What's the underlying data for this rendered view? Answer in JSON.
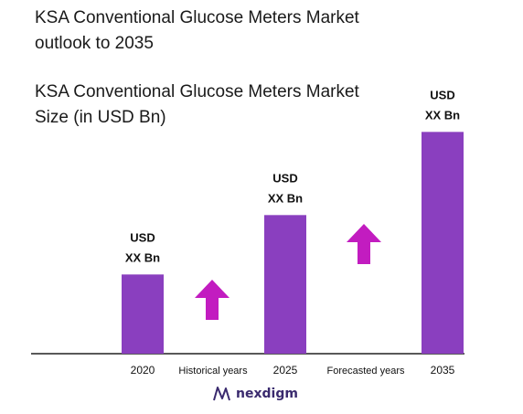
{
  "chart_data": {
    "type": "bar",
    "title": "KSA Conventional Glucose Meters Market\noutlook to 2035",
    "subtitle": "KSA Conventional Glucose Meters Market\nSize (in USD Bn)",
    "categories": [
      "2020",
      "2025",
      "2035"
    ],
    "values": [
      1.0,
      1.75,
      2.8
    ],
    "data_labels": [
      [
        "USD",
        "XX Bn"
      ],
      [
        "USD",
        "XX Bn"
      ],
      [
        "USD",
        "XX Bn"
      ]
    ],
    "period_labels": [
      "Historical years",
      "Forecasted years"
    ],
    "bar_color": "#8a3fbf",
    "arrow_color": "#c21cc0",
    "ylim": [
      0,
      3.0
    ],
    "grid": false,
    "legend": "none"
  },
  "brand": {
    "name": "nexdigm",
    "color": "#3a2a6e",
    "icon": "nexdigm-logo-icon"
  }
}
